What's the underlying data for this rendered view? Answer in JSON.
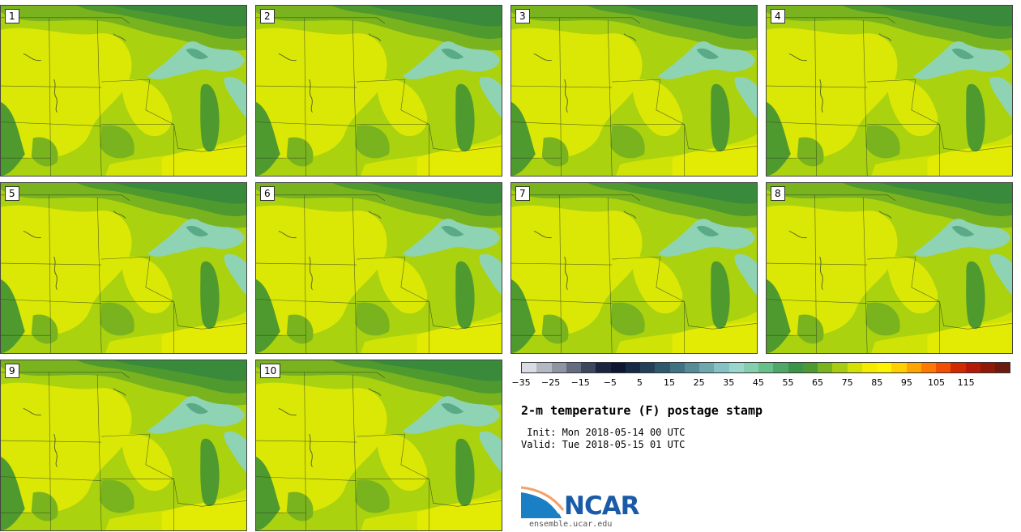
{
  "stamps": [
    {
      "label": "1"
    },
    {
      "label": "2"
    },
    {
      "label": "3"
    },
    {
      "label": "4"
    },
    {
      "label": "5"
    },
    {
      "label": "6"
    },
    {
      "label": "7"
    },
    {
      "label": "8"
    },
    {
      "label": "9"
    },
    {
      "label": "10"
    }
  ],
  "colorbar": {
    "colors": [
      "#d9dde3",
      "#b3b8c2",
      "#8d94a3",
      "#646d80",
      "#3d4760",
      "#1b2440",
      "#0c1830",
      "#152a45",
      "#234058",
      "#2f5a6d",
      "#3f7282",
      "#568c98",
      "#6ea7ae",
      "#85c2c3",
      "#99d7cc",
      "#85cfae",
      "#67bf8a",
      "#4fa86a",
      "#3b9447",
      "#4e9a32",
      "#77b420",
      "#a8cc10",
      "#d2e002",
      "#f3ec00",
      "#fff200",
      "#ffd000",
      "#ffa500",
      "#ff7800",
      "#f05000",
      "#d22a00",
      "#b41a06",
      "#8f1808",
      "#6a1a0e"
    ],
    "tick_labels": [
      "−35",
      "−25",
      "−15",
      "−5",
      "5",
      "15",
      "25",
      "35",
      "45",
      "55",
      "65",
      "75",
      "85",
      "95",
      "105",
      "115"
    ]
  },
  "title": "2-m temperature (F) postage stamp",
  "init_text": " Init: Mon 2018-05-14 00 UTC",
  "valid_text": "Valid: Tue 2018-05-15 01 UTC",
  "logo": {
    "text": "NCAR",
    "url": "ensemble.ucar.edu"
  },
  "map_colors": {
    "warm": "#dbe806",
    "mid": "#aad20f",
    "cool": "#79b41e",
    "cooler": "#4f9a2e",
    "cold": "#3a8a3c",
    "lake": "#8ed4b4",
    "lake_dark": "#5aaa88",
    "hot": "#fbf100"
  }
}
